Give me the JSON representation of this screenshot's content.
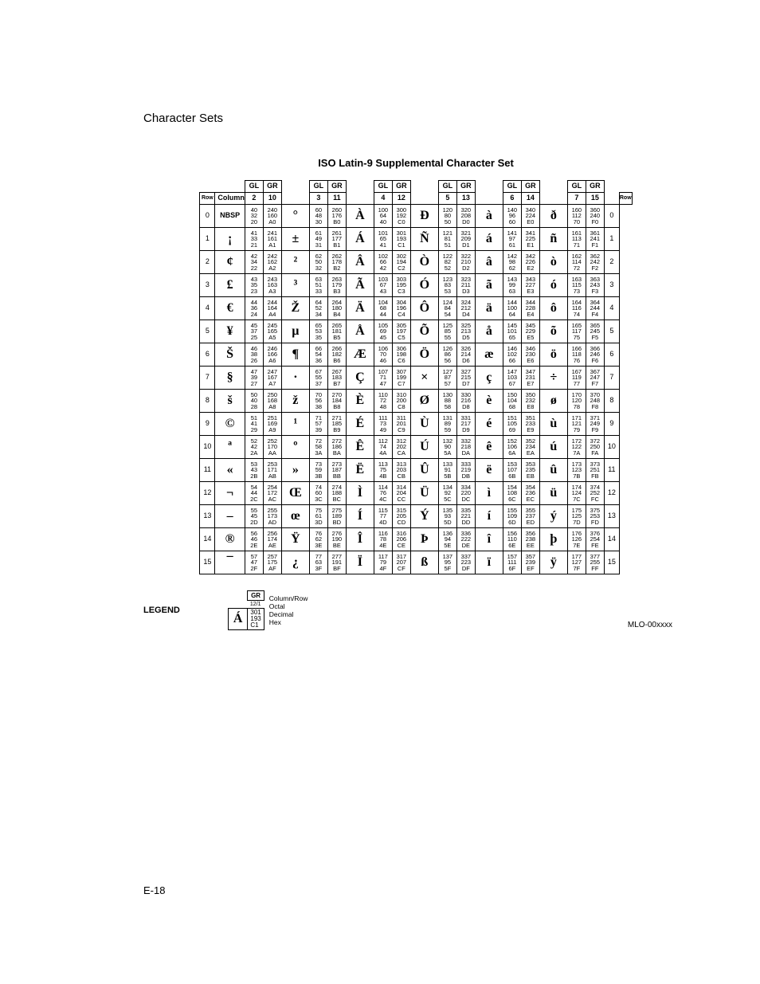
{
  "section_title": "Character Sets",
  "table_title": "ISO Latin-9 Supplemental Character Set",
  "page_number": "E-18",
  "mlo": "MLO-00xxxx",
  "header": {
    "gl": "GL",
    "gr": "GR",
    "row": "Row",
    "column": "Column",
    "cols": [
      "2",
      "10",
      "3",
      "11",
      "4",
      "12",
      "5",
      "13",
      "6",
      "14",
      "7",
      "15"
    ]
  },
  "legend": {
    "title": "LEGEND",
    "gr": "GR",
    "colrow": "12/1",
    "glyph": "Á",
    "oct": "301",
    "dec": "193",
    "hex": "C1",
    "lab_colrow": "Column/Row",
    "lab_oct": "Octal",
    "lab_dec": "Decimal",
    "lab_hex": "Hex"
  },
  "rows": [
    {
      "n": "0",
      "g": [
        "NBSP",
        "°",
        "À",
        "Đ",
        "à",
        "ð"
      ],
      "c": [
        [
          "40",
          "32",
          "20"
        ],
        [
          "240",
          "160",
          "A0"
        ],
        [
          "60",
          "48",
          "30"
        ],
        [
          "260",
          "176",
          "B0"
        ],
        [
          "100",
          "64",
          "40"
        ],
        [
          "300",
          "192",
          "C0"
        ],
        [
          "120",
          "80",
          "50"
        ],
        [
          "320",
          "208",
          "D0"
        ],
        [
          "140",
          "96",
          "60"
        ],
        [
          "340",
          "224",
          "E0"
        ],
        [
          "160",
          "112",
          "70"
        ],
        [
          "360",
          "240",
          "F0"
        ]
      ]
    },
    {
      "n": "1",
      "g": [
        "¡",
        "±",
        "Á",
        "Ñ",
        "á",
        "ñ"
      ],
      "c": [
        [
          "41",
          "33",
          "21"
        ],
        [
          "241",
          "161",
          "A1"
        ],
        [
          "61",
          "49",
          "31"
        ],
        [
          "261",
          "177",
          "B1"
        ],
        [
          "101",
          "65",
          "41"
        ],
        [
          "301",
          "193",
          "C1"
        ],
        [
          "121",
          "81",
          "51"
        ],
        [
          "321",
          "209",
          "D1"
        ],
        [
          "141",
          "97",
          "61"
        ],
        [
          "341",
          "225",
          "E1"
        ],
        [
          "161",
          "113",
          "71"
        ],
        [
          "361",
          "241",
          "F1"
        ]
      ]
    },
    {
      "n": "2",
      "g": [
        "¢",
        "²",
        "Â",
        "Ò",
        "â",
        "ò"
      ],
      "c": [
        [
          "42",
          "34",
          "22"
        ],
        [
          "242",
          "162",
          "A2"
        ],
        [
          "62",
          "50",
          "32"
        ],
        [
          "262",
          "178",
          "B2"
        ],
        [
          "102",
          "66",
          "42"
        ],
        [
          "302",
          "194",
          "C2"
        ],
        [
          "122",
          "82",
          "52"
        ],
        [
          "322",
          "210",
          "D2"
        ],
        [
          "142",
          "98",
          "62"
        ],
        [
          "342",
          "226",
          "E2"
        ],
        [
          "162",
          "114",
          "72"
        ],
        [
          "362",
          "242",
          "F2"
        ]
      ]
    },
    {
      "n": "3",
      "g": [
        "£",
        "³",
        "Ã",
        "Ó",
        "ã",
        "ó"
      ],
      "c": [
        [
          "43",
          "35",
          "23"
        ],
        [
          "243",
          "163",
          "A3"
        ],
        [
          "63",
          "51",
          "33"
        ],
        [
          "263",
          "179",
          "B3"
        ],
        [
          "103",
          "67",
          "43"
        ],
        [
          "303",
          "195",
          "C3"
        ],
        [
          "123",
          "83",
          "53"
        ],
        [
          "323",
          "211",
          "D3"
        ],
        [
          "143",
          "99",
          "63"
        ],
        [
          "343",
          "227",
          "E3"
        ],
        [
          "163",
          "115",
          "73"
        ],
        [
          "363",
          "243",
          "F3"
        ]
      ]
    },
    {
      "n": "4",
      "g": [
        "€",
        "Ž",
        "Ä",
        "Ô",
        "ä",
        "ô"
      ],
      "c": [
        [
          "44",
          "36",
          "24"
        ],
        [
          "244",
          "164",
          "A4"
        ],
        [
          "64",
          "52",
          "34"
        ],
        [
          "264",
          "180",
          "B4"
        ],
        [
          "104",
          "68",
          "44"
        ],
        [
          "304",
          "196",
          "C4"
        ],
        [
          "124",
          "84",
          "54"
        ],
        [
          "324",
          "212",
          "D4"
        ],
        [
          "144",
          "100",
          "64"
        ],
        [
          "344",
          "228",
          "E4"
        ],
        [
          "164",
          "116",
          "74"
        ],
        [
          "364",
          "244",
          "F4"
        ]
      ]
    },
    {
      "n": "5",
      "g": [
        "¥",
        "µ",
        "Å",
        "Õ",
        "å",
        "õ"
      ],
      "c": [
        [
          "45",
          "37",
          "25"
        ],
        [
          "245",
          "165",
          "A5"
        ],
        [
          "65",
          "53",
          "35"
        ],
        [
          "265",
          "181",
          "B5"
        ],
        [
          "105",
          "69",
          "45"
        ],
        [
          "305",
          "197",
          "C5"
        ],
        [
          "125",
          "85",
          "55"
        ],
        [
          "325",
          "213",
          "D5"
        ],
        [
          "145",
          "101",
          "65"
        ],
        [
          "345",
          "229",
          "E5"
        ],
        [
          "165",
          "117",
          "75"
        ],
        [
          "365",
          "245",
          "F5"
        ]
      ]
    },
    {
      "n": "6",
      "g": [
        "Š",
        "¶",
        "Æ",
        "Ö",
        "æ",
        "ö"
      ],
      "c": [
        [
          "46",
          "38",
          "26"
        ],
        [
          "246",
          "166",
          "A6"
        ],
        [
          "66",
          "54",
          "36"
        ],
        [
          "266",
          "182",
          "B6"
        ],
        [
          "106",
          "70",
          "46"
        ],
        [
          "306",
          "198",
          "C6"
        ],
        [
          "126",
          "86",
          "56"
        ],
        [
          "326",
          "214",
          "D6"
        ],
        [
          "146",
          "102",
          "66"
        ],
        [
          "346",
          "230",
          "E6"
        ],
        [
          "166",
          "118",
          "76"
        ],
        [
          "366",
          "246",
          "F6"
        ]
      ]
    },
    {
      "n": "7",
      "g": [
        "§",
        "·",
        "Ç",
        "×",
        "ç",
        "÷"
      ],
      "c": [
        [
          "47",
          "39",
          "27"
        ],
        [
          "247",
          "167",
          "A7"
        ],
        [
          "67",
          "55",
          "37"
        ],
        [
          "267",
          "183",
          "B7"
        ],
        [
          "107",
          "71",
          "47"
        ],
        [
          "307",
          "199",
          "C7"
        ],
        [
          "127",
          "87",
          "57"
        ],
        [
          "327",
          "215",
          "D7"
        ],
        [
          "147",
          "103",
          "67"
        ],
        [
          "347",
          "231",
          "E7"
        ],
        [
          "167",
          "119",
          "77"
        ],
        [
          "367",
          "247",
          "F7"
        ]
      ]
    },
    {
      "n": "8",
      "g": [
        "š",
        "ž",
        "È",
        "Ø",
        "è",
        "ø"
      ],
      "c": [
        [
          "50",
          "40",
          "28"
        ],
        [
          "250",
          "168",
          "A8"
        ],
        [
          "70",
          "56",
          "38"
        ],
        [
          "270",
          "184",
          "B8"
        ],
        [
          "110",
          "72",
          "48"
        ],
        [
          "310",
          "200",
          "C8"
        ],
        [
          "130",
          "88",
          "58"
        ],
        [
          "330",
          "216",
          "D8"
        ],
        [
          "150",
          "104",
          "68"
        ],
        [
          "350",
          "232",
          "E8"
        ],
        [
          "170",
          "120",
          "78"
        ],
        [
          "370",
          "248",
          "F8"
        ]
      ]
    },
    {
      "n": "9",
      "g": [
        "©",
        "¹",
        "É",
        "Ù",
        "é",
        "ù"
      ],
      "c": [
        [
          "51",
          "41",
          "29"
        ],
        [
          "251",
          "169",
          "A9"
        ],
        [
          "71",
          "57",
          "39"
        ],
        [
          "271",
          "185",
          "B9"
        ],
        [
          "111",
          "73",
          "49"
        ],
        [
          "311",
          "201",
          "C9"
        ],
        [
          "131",
          "89",
          "59"
        ],
        [
          "331",
          "217",
          "D9"
        ],
        [
          "151",
          "105",
          "69"
        ],
        [
          "351",
          "233",
          "E9"
        ],
        [
          "171",
          "121",
          "79"
        ],
        [
          "371",
          "249",
          "F9"
        ]
      ]
    },
    {
      "n": "10",
      "g": [
        "ª",
        "º",
        "Ê",
        "Ú",
        "ê",
        "ú"
      ],
      "c": [
        [
          "52",
          "42",
          "2A"
        ],
        [
          "252",
          "170",
          "AA"
        ],
        [
          "72",
          "58",
          "3A"
        ],
        [
          "272",
          "186",
          "BA"
        ],
        [
          "112",
          "74",
          "4A"
        ],
        [
          "312",
          "202",
          "CA"
        ],
        [
          "132",
          "90",
          "5A"
        ],
        [
          "332",
          "218",
          "DA"
        ],
        [
          "152",
          "106",
          "6A"
        ],
        [
          "352",
          "234",
          "EA"
        ],
        [
          "172",
          "122",
          "7A"
        ],
        [
          "372",
          "250",
          "FA"
        ]
      ]
    },
    {
      "n": "11",
      "g": [
        "«",
        "»",
        "Ë",
        "Û",
        "ë",
        "û"
      ],
      "c": [
        [
          "53",
          "43",
          "2B"
        ],
        [
          "253",
          "171",
          "AB"
        ],
        [
          "73",
          "59",
          "3B"
        ],
        [
          "273",
          "187",
          "BB"
        ],
        [
          "113",
          "75",
          "4B"
        ],
        [
          "313",
          "203",
          "CB"
        ],
        [
          "133",
          "91",
          "5B"
        ],
        [
          "333",
          "219",
          "DB"
        ],
        [
          "153",
          "107",
          "6B"
        ],
        [
          "353",
          "235",
          "EB"
        ],
        [
          "173",
          "123",
          "7B"
        ],
        [
          "373",
          "251",
          "FB"
        ]
      ]
    },
    {
      "n": "12",
      "g": [
        "¬",
        "Œ",
        "Ì",
        "Ü",
        "ì",
        "ü"
      ],
      "c": [
        [
          "54",
          "44",
          "2C"
        ],
        [
          "254",
          "172",
          "AC"
        ],
        [
          "74",
          "60",
          "3C"
        ],
        [
          "274",
          "188",
          "BC"
        ],
        [
          "114",
          "76",
          "4C"
        ],
        [
          "314",
          "204",
          "CC"
        ],
        [
          "134",
          "92",
          "5C"
        ],
        [
          "334",
          "220",
          "DC"
        ],
        [
          "154",
          "108",
          "6C"
        ],
        [
          "354",
          "236",
          "EC"
        ],
        [
          "174",
          "124",
          "7C"
        ],
        [
          "374",
          "252",
          "FC"
        ]
      ]
    },
    {
      "n": "13",
      "g": [
        "–",
        "œ",
        "Í",
        "Ý",
        "í",
        "ý"
      ],
      "c": [
        [
          "55",
          "45",
          "2D"
        ],
        [
          "255",
          "173",
          "AD"
        ],
        [
          "75",
          "61",
          "3D"
        ],
        [
          "275",
          "189",
          "BD"
        ],
        [
          "115",
          "77",
          "4D"
        ],
        [
          "315",
          "205",
          "CD"
        ],
        [
          "135",
          "93",
          "5D"
        ],
        [
          "335",
          "221",
          "DD"
        ],
        [
          "155",
          "109",
          "6D"
        ],
        [
          "355",
          "237",
          "ED"
        ],
        [
          "175",
          "125",
          "7D"
        ],
        [
          "375",
          "253",
          "FD"
        ]
      ]
    },
    {
      "n": "14",
      "g": [
        "®",
        "Ÿ",
        "Î",
        "Þ",
        "î",
        "þ"
      ],
      "c": [
        [
          "56",
          "46",
          "2E"
        ],
        [
          "256",
          "174",
          "AE"
        ],
        [
          "76",
          "62",
          "3E"
        ],
        [
          "276",
          "190",
          "BE"
        ],
        [
          "116",
          "78",
          "4E"
        ],
        [
          "316",
          "206",
          "CE"
        ],
        [
          "136",
          "94",
          "5E"
        ],
        [
          "336",
          "222",
          "DE"
        ],
        [
          "156",
          "110",
          "6E"
        ],
        [
          "356",
          "238",
          "EE"
        ],
        [
          "176",
          "126",
          "7E"
        ],
        [
          "376",
          "254",
          "FE"
        ]
      ]
    },
    {
      "n": "15",
      "g": [
        "¯",
        "¿",
        "Ï",
        "ß",
        "ï",
        "ÿ"
      ],
      "c": [
        [
          "57",
          "47",
          "2F"
        ],
        [
          "257",
          "175",
          "AF"
        ],
        [
          "77",
          "63",
          "3F"
        ],
        [
          "277",
          "191",
          "BF"
        ],
        [
          "117",
          "79",
          "4F"
        ],
        [
          "317",
          "207",
          "CF"
        ],
        [
          "137",
          "95",
          "5F"
        ],
        [
          "337",
          "223",
          "DF"
        ],
        [
          "157",
          "111",
          "6F"
        ],
        [
          "357",
          "239",
          "EF"
        ],
        [
          "177",
          "127",
          "7F"
        ],
        [
          "377",
          "255",
          "FF"
        ]
      ]
    }
  ]
}
